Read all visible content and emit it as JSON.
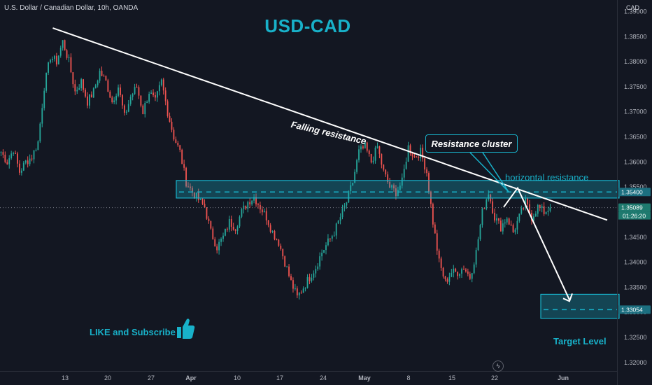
{
  "header": {
    "symbol_line": "U.S. Dollar / Canadian Dollar, 10h, OANDA",
    "title": "USD-CAD",
    "currency": "CAD"
  },
  "annotations": {
    "falling_resistance": "Falling  resistance",
    "resistance_cluster": "Resistance cluster",
    "horizontal_resistance": "horizontal resistance",
    "target_level": "Target Level",
    "like_subscribe": "LIKE and Subscribe",
    "thumb_icon": "thumbs-up-icon",
    "bolt_icon": "lightning-icon"
  },
  "colors": {
    "background": "#131722",
    "bull": "#26a69a",
    "bear": "#ef5350",
    "accent": "#18b1c9",
    "line": "#ffffff"
  },
  "chart_data": {
    "type": "candlestick",
    "x_ticks": [
      "13",
      "20",
      "27",
      "Apr",
      "10",
      "17",
      "24",
      "May",
      "8",
      "15",
      "22",
      "Jun"
    ],
    "y_ticks": [
      "1.39000",
      "1.38500",
      "1.38000",
      "1.37500",
      "1.37000",
      "1.36500",
      "1.36000",
      "1.35500",
      "1.35000",
      "1.34500",
      "1.34000",
      "1.33500",
      "1.33000",
      "1.32500",
      "1.32000"
    ],
    "ylim": [
      1.3183,
      1.3923
    ],
    "current_price": "1.35089",
    "countdown": "01:26:20",
    "resistance_level": "1.35400",
    "target_price": "1.33054",
    "resistance_zone": [
      1.3528,
      1.3563
    ],
    "target_zone": [
      1.3288,
      1.3336
    ],
    "candle_path": [
      [
        0,
        1.362
      ],
      [
        3,
        1.36
      ],
      [
        6,
        1.3625
      ],
      [
        9,
        1.358
      ],
      [
        12,
        1.36
      ],
      [
        15,
        1.361
      ],
      [
        18,
        1.364
      ],
      [
        21,
        1.375
      ],
      [
        24,
        1.381
      ],
      [
        27,
        1.38
      ],
      [
        30,
        1.384
      ],
      [
        33,
        1.38
      ],
      [
        36,
        1.374
      ],
      [
        39,
        1.376
      ],
      [
        42,
        1.372
      ],
      [
        45,
        1.374
      ],
      [
        48,
        1.378
      ],
      [
        51,
        1.376
      ],
      [
        54,
        1.372
      ],
      [
        57,
        1.375
      ],
      [
        60,
        1.369
      ],
      [
        63,
        1.373
      ],
      [
        66,
        1.375
      ],
      [
        69,
        1.37
      ],
      [
        72,
        1.374
      ],
      [
        75,
        1.372
      ],
      [
        78,
        1.376
      ],
      [
        81,
        1.37
      ],
      [
        84,
        1.365
      ],
      [
        87,
        1.362
      ],
      [
        90,
        1.356
      ],
      [
        93,
        1.354
      ],
      [
        96,
        1.3525
      ],
      [
        99,
        1.351
      ],
      [
        102,
        1.346
      ],
      [
        105,
        1.343
      ],
      [
        108,
        1.345
      ],
      [
        111,
        1.348
      ],
      [
        114,
        1.347
      ],
      [
        117,
        1.35
      ],
      [
        120,
        1.352
      ],
      [
        123,
        1.353
      ],
      [
        126,
        1.351
      ],
      [
        129,
        1.349
      ],
      [
        132,
        1.346
      ],
      [
        135,
        1.344
      ],
      [
        138,
        1.34
      ],
      [
        141,
        1.336
      ],
      [
        144,
        1.333
      ],
      [
        147,
        1.335
      ],
      [
        150,
        1.337
      ],
      [
        153,
        1.339
      ],
      [
        156,
        1.342
      ],
      [
        159,
        1.344
      ],
      [
        162,
        1.346
      ],
      [
        165,
        1.349
      ],
      [
        168,
        1.352
      ],
      [
        171,
        1.356
      ],
      [
        174,
        1.362
      ],
      [
        177,
        1.363
      ],
      [
        180,
        1.36
      ],
      [
        183,
        1.363
      ],
      [
        186,
        1.358
      ],
      [
        189,
        1.355
      ],
      [
        192,
        1.354
      ],
      [
        195,
        1.356
      ],
      [
        198,
        1.363
      ],
      [
        201,
        1.361
      ],
      [
        204,
        1.362
      ],
      [
        207,
        1.358
      ],
      [
        210,
        1.348
      ],
      [
        213,
        1.34
      ],
      [
        216,
        1.336
      ],
      [
        219,
        1.338
      ],
      [
        222,
        1.338
      ],
      [
        225,
        1.339
      ],
      [
        228,
        1.337
      ],
      [
        231,
        1.342
      ],
      [
        234,
        1.35
      ],
      [
        237,
        1.354
      ],
      [
        240,
        1.349
      ],
      [
        243,
        1.347
      ],
      [
        246,
        1.349
      ],
      [
        249,
        1.346
      ],
      [
        252,
        1.349
      ],
      [
        255,
        1.352
      ],
      [
        258,
        1.349
      ],
      [
        261,
        1.351
      ],
      [
        264,
        1.35
      ],
      [
        267,
        1.3509
      ]
    ],
    "trendline": [
      [
        0,
        1.3867
      ],
      [
        294,
        1.3484
      ]
    ],
    "projection": [
      [
        272,
        1.351
      ],
      [
        282,
        1.3548
      ],
      [
        300,
        1.3325
      ]
    ]
  }
}
